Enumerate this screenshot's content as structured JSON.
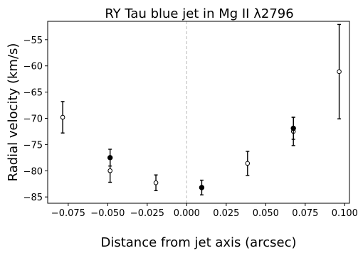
{
  "chart_data": {
    "type": "scatter",
    "title": "RY Tau blue jet in Mg II λ2796",
    "xlabel": "Distance from jet axis (arcsec)",
    "ylabel": "Radial velocity (km/s)",
    "xlim": [
      -0.088,
      0.103
    ],
    "ylim": [
      -86.2,
      -51.5
    ],
    "xticks": [
      -0.075,
      -0.05,
      -0.025,
      0.0,
      0.025,
      0.05,
      0.075,
      0.1
    ],
    "xtick_labels": [
      "−0.075",
      "−0.050",
      "−0.025",
      "0.000",
      "0.025",
      "0.050",
      "0.075",
      "0.100"
    ],
    "yticks": [
      -55,
      -60,
      -65,
      -70,
      -75,
      -80,
      -85
    ],
    "ytick_labels": [
      "−55",
      "−60",
      "−65",
      "−70",
      "−75",
      "−80",
      "−85"
    ],
    "vline": {
      "x": 0.0,
      "style": "dashed",
      "color": "#bbbbbb"
    },
    "grid": false,
    "series": [
      {
        "marker": "open-circle",
        "color": "#000000",
        "points": [
          {
            "x": -0.0785,
            "y": -69.8,
            "err_lo": 3.0,
            "err_hi": 3.0
          },
          {
            "x": -0.0485,
            "y": -80.0,
            "err_lo": 2.2,
            "err_hi": 2.2
          },
          {
            "x": -0.0195,
            "y": -82.3,
            "err_lo": 1.5,
            "err_hi": 1.5
          },
          {
            "x": 0.0385,
            "y": -78.6,
            "err_lo": 2.3,
            "err_hi": 2.3
          },
          {
            "x": 0.0675,
            "y": -72.5,
            "err_lo": 2.7,
            "err_hi": 2.7
          },
          {
            "x": 0.0965,
            "y": -61.1,
            "err_lo": 9.0,
            "err_hi": 9.0
          }
        ]
      },
      {
        "marker": "filled-circle",
        "color": "#000000",
        "points": [
          {
            "x": -0.0485,
            "y": -77.5,
            "err_lo": 1.6,
            "err_hi": 1.6
          },
          {
            "x": 0.0095,
            "y": -83.2,
            "err_lo": 1.4,
            "err_hi": 1.4
          },
          {
            "x": 0.0675,
            "y": -71.9,
            "err_lo": 2.1,
            "err_hi": 2.1
          }
        ]
      }
    ]
  }
}
